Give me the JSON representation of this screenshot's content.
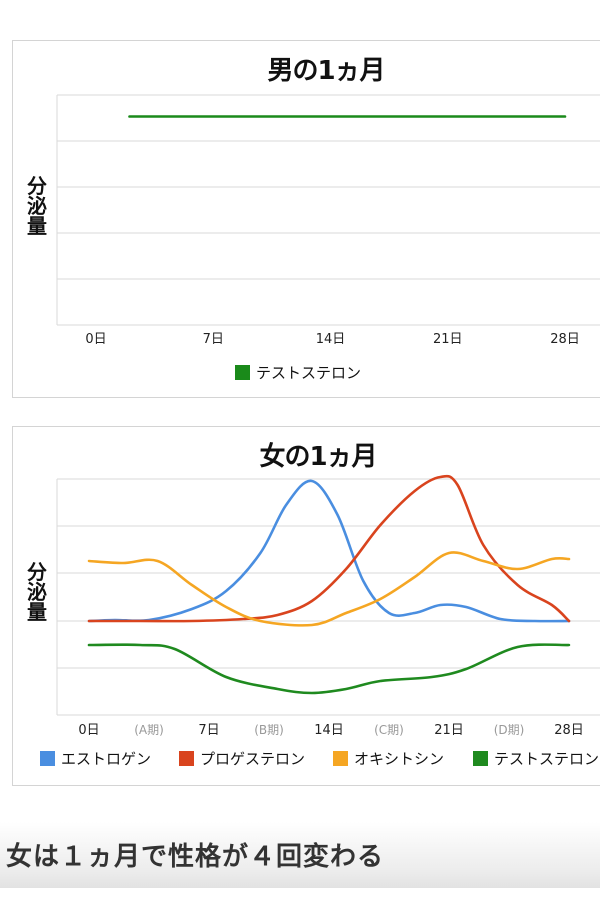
{
  "chart_data": [
    {
      "type": "line",
      "title": "男の1ヵ月",
      "ylabel": "分泌量",
      "categories": [
        "0日",
        "7日",
        "14日",
        "21日",
        "28日"
      ],
      "grid": true,
      "legend": "bottom",
      "series": [
        {
          "name": "テストステロン",
          "color": "#1a8a1a",
          "x": [
            2,
            28
          ],
          "values": [
            100,
            100
          ]
        }
      ]
    },
    {
      "type": "line",
      "title": "女の1ヵ月",
      "ylabel": "分泌量",
      "categories": [
        "0日",
        "7日",
        "14日",
        "21日",
        "28日"
      ],
      "phase_labels": [
        "(A期)",
        "(B期)",
        "(C期)",
        "(D期)"
      ],
      "grid": true,
      "legend": "bottom",
      "series": [
        {
          "name": "エストロゲン",
          "color": "#4a8ee0",
          "x": [
            0,
            1.5,
            3.5,
            6,
            8,
            10,
            11.5,
            13,
            14.5,
            16,
            17.5,
            19,
            20.5,
            22,
            24,
            26,
            28
          ],
          "values": [
            0,
            0.5,
            0.5,
            6,
            15,
            34,
            58,
            70,
            53,
            20,
            4,
            4,
            8,
            7,
            1,
            0,
            0
          ]
        },
        {
          "name": "プロゲステロン",
          "color": "#d9441e",
          "x": [
            0,
            3,
            6,
            9,
            11,
            13,
            15,
            17,
            19,
            20.5,
            21.5,
            23,
            25,
            27,
            28
          ],
          "values": [
            0,
            0,
            0,
            1,
            3,
            10,
            26,
            48,
            65,
            72,
            68,
            38,
            18,
            8,
            0
          ]
        },
        {
          "name": "オキシトシン",
          "color": "#f5a623",
          "x": [
            0,
            2,
            4,
            6,
            8,
            10,
            13,
            15,
            17,
            19,
            21,
            23,
            25,
            27,
            28
          ],
          "values": [
            30,
            29,
            30,
            18,
            7,
            0,
            -2,
            4,
            11,
            22,
            34,
            30,
            26,
            31,
            31
          ]
        },
        {
          "name": "テストステロン",
          "color": "#1f8a1f",
          "x": [
            0,
            3,
            5,
            8,
            11,
            13,
            15,
            17,
            20,
            22,
            25,
            28
          ],
          "values": [
            -12,
            -12,
            -14,
            -28,
            -34,
            -36,
            -34,
            -30,
            -28,
            -24,
            -13,
            -12
          ]
        }
      ]
    }
  ],
  "caption": "女は１ヵ月で性格が４回変わる"
}
